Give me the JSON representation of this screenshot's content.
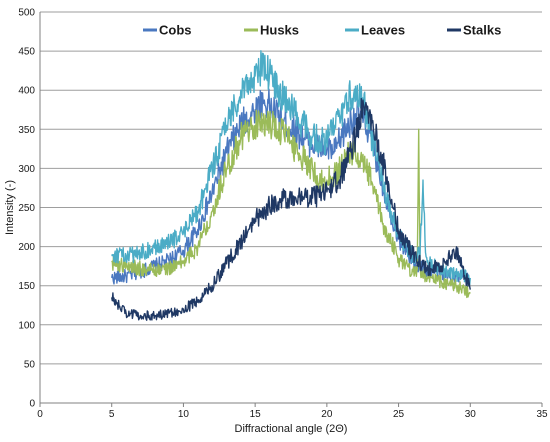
{
  "chart_data": {
    "type": "line",
    "xlabel": "Diffractional angle (2Θ)",
    "ylabel": "Intensity (-)",
    "xlim": [
      0,
      35
    ],
    "ylim": [
      0,
      500
    ],
    "x_ticks": [
      "0",
      "5",
      "10",
      "15",
      "20",
      "25",
      "30",
      "35"
    ],
    "y_ticks": [
      "0",
      "50",
      "100",
      "150",
      "200",
      "250",
      "300",
      "350",
      "400",
      "450",
      "500"
    ],
    "grid": "horizontal",
    "legend_position": "top",
    "series": [
      {
        "name": "Cobs",
        "color": "#4a78c0",
        "points": [
          [
            5,
            160
          ],
          [
            6,
            162
          ],
          [
            7,
            168
          ],
          [
            8,
            175
          ],
          [
            9,
            182
          ],
          [
            10,
            195
          ],
          [
            11,
            222
          ],
          [
            12,
            268
          ],
          [
            13,
            320
          ],
          [
            14,
            355
          ],
          [
            15,
            375
          ],
          [
            15.5,
            385
          ],
          [
            16,
            380
          ],
          [
            17,
            360
          ],
          [
            18,
            345
          ],
          [
            19,
            330
          ],
          [
            20,
            325
          ],
          [
            20.5,
            320
          ],
          [
            21,
            340
          ],
          [
            22,
            370
          ],
          [
            22.5,
            365
          ],
          [
            23,
            345
          ],
          [
            24,
            270
          ],
          [
            25,
            210
          ],
          [
            26,
            180
          ],
          [
            27,
            170
          ],
          [
            28,
            165
          ],
          [
            29,
            162
          ],
          [
            30,
            158
          ]
        ]
      },
      {
        "name": "Husks",
        "color": "#9bbb59",
        "points": [
          [
            5,
            180
          ],
          [
            6,
            175
          ],
          [
            7,
            172
          ],
          [
            8,
            170
          ],
          [
            9,
            172
          ],
          [
            10,
            180
          ],
          [
            11,
            200
          ],
          [
            12,
            245
          ],
          [
            13,
            300
          ],
          [
            14,
            340
          ],
          [
            15,
            355
          ],
          [
            16,
            358
          ],
          [
            17,
            345
          ],
          [
            18,
            320
          ],
          [
            19,
            300
          ],
          [
            19.5,
            285
          ],
          [
            20,
            285
          ],
          [
            21,
            300
          ],
          [
            21.5,
            320
          ],
          [
            22,
            318
          ],
          [
            23,
            290
          ],
          [
            24,
            225
          ],
          [
            25,
            185
          ],
          [
            26,
            168
          ],
          [
            26.3,
            170
          ],
          [
            26.4,
            350
          ],
          [
            26.5,
            170
          ],
          [
            27,
            160
          ],
          [
            28,
            155
          ],
          [
            29,
            150
          ],
          [
            30,
            140
          ]
        ]
      },
      {
        "name": "Leaves",
        "color": "#4bacc6",
        "points": [
          [
            5,
            190
          ],
          [
            6,
            188
          ],
          [
            7,
            192
          ],
          [
            8,
            198
          ],
          [
            9,
            205
          ],
          [
            10,
            218
          ],
          [
            11,
            245
          ],
          [
            12,
            300
          ],
          [
            13,
            355
          ],
          [
            14,
            400
          ],
          [
            15,
            418
          ],
          [
            15.5,
            430
          ],
          [
            16,
            420
          ],
          [
            17,
            390
          ],
          [
            18,
            365
          ],
          [
            19,
            340
          ],
          [
            20,
            335
          ],
          [
            21,
            370
          ],
          [
            22,
            405
          ],
          [
            22.5,
            390
          ],
          [
            23,
            350
          ],
          [
            24,
            275
          ],
          [
            25,
            215
          ],
          [
            26,
            188
          ],
          [
            26.5,
            190
          ],
          [
            26.7,
            285
          ],
          [
            26.9,
            190
          ],
          [
            27,
            180
          ],
          [
            28,
            170
          ],
          [
            29,
            165
          ],
          [
            30,
            160
          ]
        ]
      },
      {
        "name": "Stalks",
        "color": "#1f3864",
        "points": [
          [
            5,
            135
          ],
          [
            6,
            115
          ],
          [
            7,
            112
          ],
          [
            8,
            112
          ],
          [
            9,
            115
          ],
          [
            10,
            120
          ],
          [
            11,
            130
          ],
          [
            12,
            150
          ],
          [
            13,
            178
          ],
          [
            14,
            205
          ],
          [
            15,
            235
          ],
          [
            16,
            252
          ],
          [
            17,
            262
          ],
          [
            18,
            265
          ],
          [
            19,
            262
          ],
          [
            20,
            270
          ],
          [
            21,
            290
          ],
          [
            22,
            340
          ],
          [
            22.5,
            385
          ],
          [
            23,
            375
          ],
          [
            24,
            300
          ],
          [
            25,
            220
          ],
          [
            26,
            190
          ],
          [
            27,
            170
          ],
          [
            28,
            175
          ],
          [
            29,
            195
          ],
          [
            30,
            145
          ]
        ]
      }
    ]
  }
}
